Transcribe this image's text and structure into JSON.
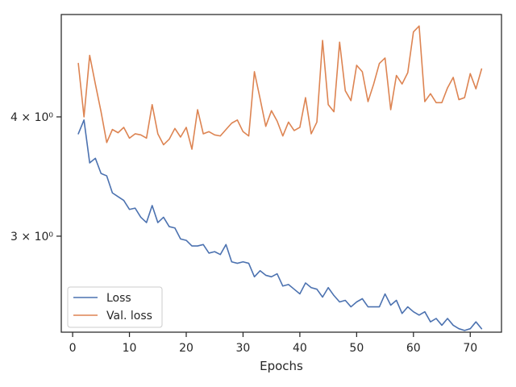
{
  "chart_data": {
    "type": "line",
    "title": "",
    "xlabel": "Epochs",
    "ylabel": "",
    "yscale": "log",
    "xlim": [
      -2,
      75.5
    ],
    "ylim": [
      2.38,
      5.12
    ],
    "grid": false,
    "legend_position": "lower-left",
    "x_ticks": [
      0,
      10,
      20,
      30,
      40,
      50,
      60,
      70
    ],
    "x_tick_labels": [
      "0",
      "10",
      "20",
      "30",
      "40",
      "50",
      "60",
      "70"
    ],
    "y_ticks": [
      3,
      4
    ],
    "y_tick_labels": [
      "3 × 10⁰",
      "4 × 10⁰"
    ],
    "x": [
      1,
      2,
      3,
      4,
      5,
      6,
      7,
      8,
      9,
      10,
      11,
      12,
      13,
      14,
      15,
      16,
      17,
      18,
      19,
      20,
      21,
      22,
      23,
      24,
      25,
      26,
      27,
      28,
      29,
      30,
      31,
      32,
      33,
      34,
      35,
      36,
      37,
      38,
      39,
      40,
      41,
      42,
      43,
      44,
      45,
      46,
      47,
      48,
      49,
      50,
      51,
      52,
      53,
      54,
      55,
      56,
      57,
      58,
      59,
      60,
      61,
      62,
      63,
      64,
      65,
      66,
      67,
      68,
      69,
      70,
      71,
      72
    ],
    "series": [
      {
        "name": "Loss",
        "color": "#4c72b0",
        "values": [
          3.84,
          3.97,
          3.58,
          3.62,
          3.49,
          3.47,
          3.33,
          3.3,
          3.27,
          3.2,
          3.21,
          3.14,
          3.1,
          3.23,
          3.1,
          3.14,
          3.07,
          3.06,
          2.98,
          2.97,
          2.93,
          2.93,
          2.94,
          2.88,
          2.89,
          2.87,
          2.94,
          2.82,
          2.81,
          2.82,
          2.81,
          2.72,
          2.76,
          2.73,
          2.72,
          2.74,
          2.66,
          2.67,
          2.64,
          2.61,
          2.68,
          2.65,
          2.64,
          2.59,
          2.65,
          2.6,
          2.56,
          2.57,
          2.53,
          2.56,
          2.58,
          2.53,
          2.53,
          2.53,
          2.61,
          2.54,
          2.57,
          2.49,
          2.53,
          2.5,
          2.48,
          2.5,
          2.44,
          2.46,
          2.42,
          2.46,
          2.42,
          2.4,
          2.39,
          2.4,
          2.44,
          2.4
        ]
      },
      {
        "name": "Val. loss",
        "color": "#dd8452",
        "values": [
          4.55,
          4.0,
          4.64,
          4.33,
          4.05,
          3.76,
          3.88,
          3.85,
          3.9,
          3.8,
          3.84,
          3.83,
          3.8,
          4.12,
          3.84,
          3.74,
          3.79,
          3.89,
          3.81,
          3.9,
          3.7,
          4.07,
          3.84,
          3.86,
          3.83,
          3.82,
          3.88,
          3.94,
          3.97,
          3.86,
          3.82,
          4.46,
          4.18,
          3.91,
          4.06,
          3.96,
          3.82,
          3.95,
          3.87,
          3.9,
          4.19,
          3.84,
          3.95,
          4.81,
          4.12,
          4.05,
          4.79,
          4.26,
          4.16,
          4.53,
          4.46,
          4.15,
          4.33,
          4.55,
          4.61,
          4.07,
          4.42,
          4.33,
          4.45,
          4.91,
          4.98,
          4.15,
          4.23,
          4.14,
          4.14,
          4.29,
          4.4,
          4.17,
          4.19,
          4.44,
          4.28,
          4.49
        ]
      }
    ]
  }
}
